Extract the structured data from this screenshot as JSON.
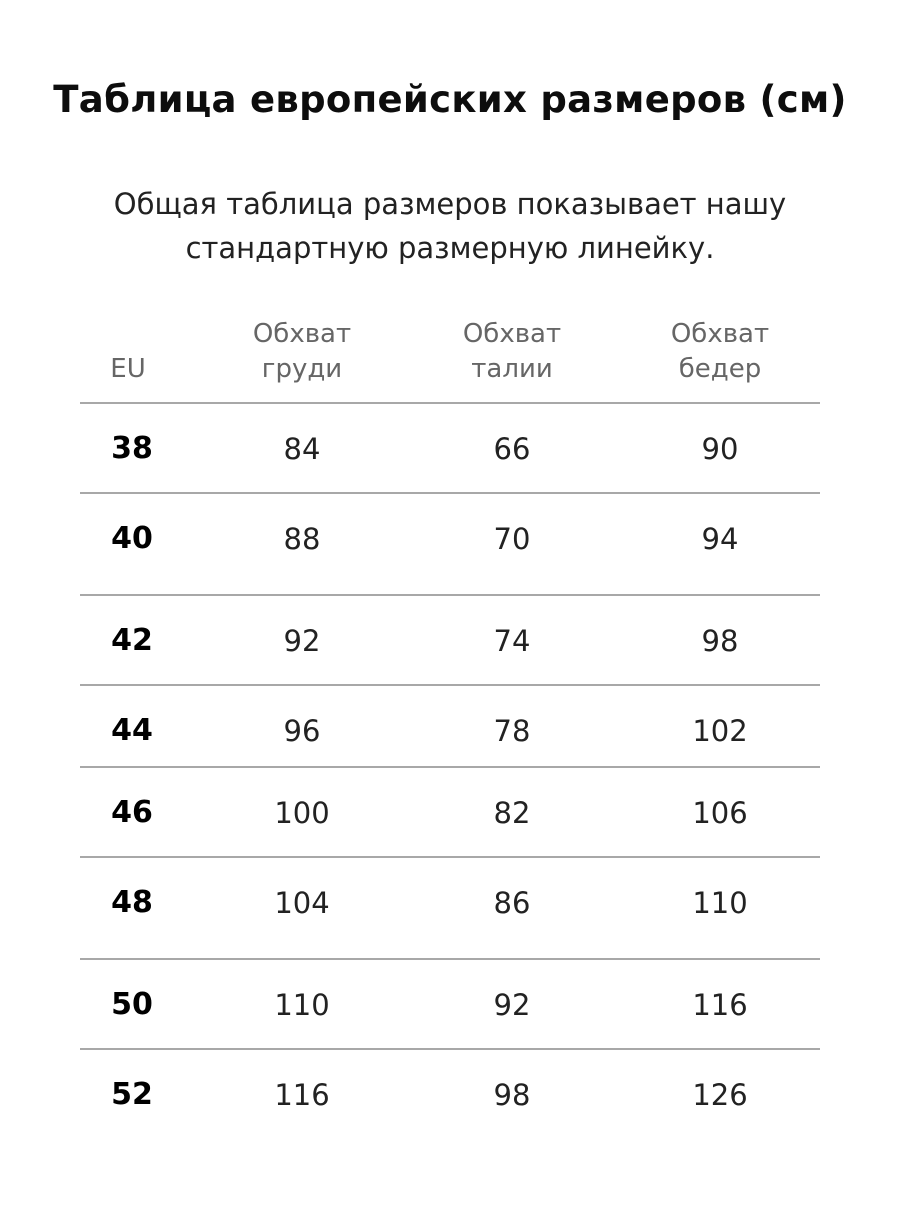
{
  "title": "Таблица европейских размеров (см)",
  "subtitle": {
    "line1": "Общая таблица размеров показывает нашу",
    "line2": "стандартную размерную линейку."
  },
  "table": {
    "headers": [
      {
        "line1": "",
        "line2": "EU"
      },
      {
        "line1": "Обхват",
        "line2": "груди"
      },
      {
        "line1": "Обхват",
        "line2": "талии"
      },
      {
        "line1": "Обхват",
        "line2": "бедер"
      }
    ],
    "rows": [
      [
        "38",
        "84",
        "66",
        "90"
      ],
      [
        "40",
        "88",
        "70",
        "94"
      ],
      [
        "42",
        "92",
        "74",
        "98"
      ],
      [
        "44",
        "96",
        "78",
        "102"
      ],
      [
        "46",
        "100",
        "82",
        "106"
      ],
      [
        "48",
        "104",
        "86",
        "110"
      ],
      [
        "50",
        "110",
        "92",
        "116"
      ],
      [
        "52",
        "116",
        "98",
        "126"
      ]
    ]
  }
}
